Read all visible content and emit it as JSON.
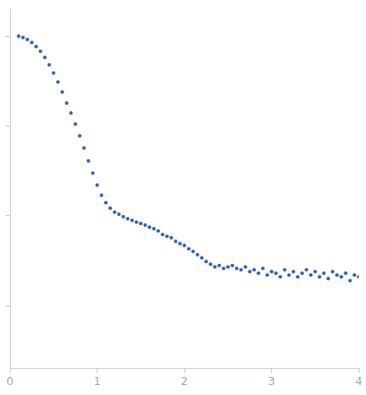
{
  "chart_data": {
    "type": "scatter",
    "x": [
      0.1,
      0.15,
      0.2,
      0.25,
      0.3,
      0.35,
      0.4,
      0.45,
      0.5,
      0.55,
      0.6,
      0.65,
      0.7,
      0.75,
      0.8,
      0.85,
      0.9,
      0.95,
      1.0,
      1.05,
      1.1,
      1.15,
      1.2,
      1.25,
      1.3,
      1.35,
      1.4,
      1.45,
      1.5,
      1.55,
      1.6,
      1.65,
      1.7,
      1.75,
      1.8,
      1.85,
      1.9,
      1.95,
      2.0,
      2.05,
      2.1,
      2.15,
      2.2,
      2.25,
      2.3,
      2.35,
      2.4,
      2.45,
      2.5,
      2.55,
      2.6,
      2.65,
      2.7,
      2.75,
      2.8,
      2.85,
      2.9,
      2.95,
      3.0,
      3.05,
      3.1,
      3.15,
      3.2,
      3.25,
      3.3,
      3.35,
      3.4,
      3.45,
      3.5,
      3.55,
      3.6,
      3.65,
      3.7,
      3.75,
      3.8,
      3.85,
      3.9,
      3.95,
      4.0
    ],
    "values": [
      1.0,
      0.97,
      0.92,
      0.85,
      0.77,
      0.68,
      0.58,
      0.48,
      0.39,
      0.31,
      0.24,
      0.18,
      0.14,
      0.105,
      0.078,
      0.057,
      0.041,
      0.03,
      0.022,
      0.017,
      0.014,
      0.0122,
      0.011,
      0.0104,
      0.0098,
      0.0093,
      0.0089,
      0.0085,
      0.0082,
      0.0079,
      0.0075,
      0.0072,
      0.0068,
      0.0062,
      0.0059,
      0.0057,
      0.0052,
      0.0049,
      0.0047,
      0.0043,
      0.004,
      0.0037,
      0.0034,
      0.0031,
      0.0029,
      0.0027,
      0.0028,
      0.0026,
      0.0027,
      0.0028,
      0.0026,
      0.0025,
      0.0027,
      0.0024,
      0.0025,
      0.0023,
      0.0026,
      0.0022,
      0.0024,
      0.0023,
      0.0021,
      0.0025,
      0.0022,
      0.0024,
      0.0021,
      0.0023,
      0.0025,
      0.0022,
      0.0024,
      0.0021,
      0.0023,
      0.002,
      0.0024,
      0.0022,
      0.0021,
      0.0023,
      0.0019,
      0.0022,
      0.0021
    ],
    "color": "#3461b3",
    "xlim": [
      0,
      4
    ],
    "xticks": [
      0,
      1,
      2,
      3,
      4
    ],
    "ylim": [
      0.0002,
      2
    ],
    "yticks": [
      0.001,
      0.01,
      0.1,
      1
    ],
    "log": "y",
    "grid": false,
    "tick_labels": "x",
    "marker": "circle"
  }
}
